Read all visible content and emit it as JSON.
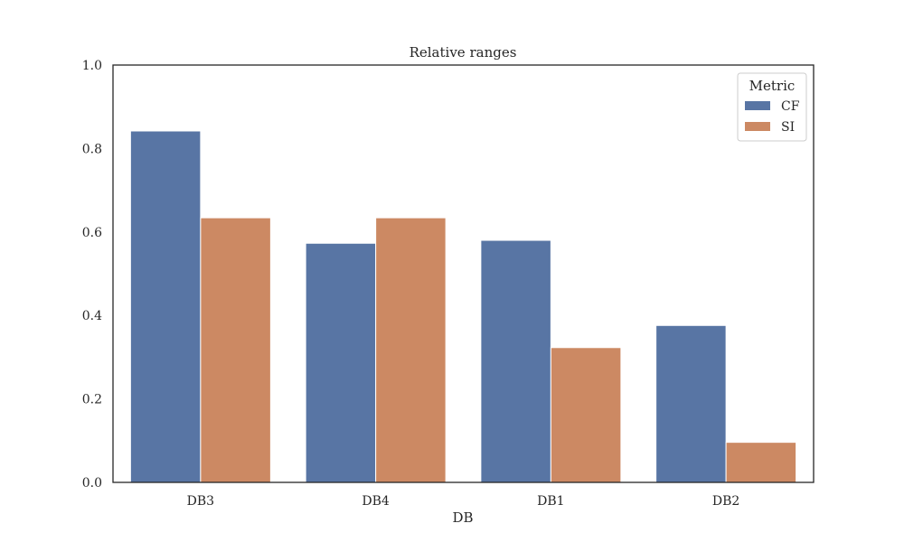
{
  "chart_data": {
    "type": "bar",
    "title": "Relative ranges",
    "xlabel": "DB",
    "ylabel": "",
    "categories": [
      "DB3",
      "DB4",
      "DB1",
      "DB2"
    ],
    "series": [
      {
        "name": "CF",
        "color": "#5875a4",
        "values": [
          0.842,
          0.573,
          0.58,
          0.376
        ]
      },
      {
        "name": "SI",
        "color": "#cc8963",
        "values": [
          0.634,
          0.634,
          0.323,
          0.096
        ]
      }
    ],
    "ylim": [
      0,
      1
    ],
    "yticks": [
      "0.0",
      "0.2",
      "0.4",
      "0.6",
      "0.8",
      "1.0"
    ],
    "grid": false,
    "legend": {
      "title": "Metric",
      "position": "top-right"
    }
  }
}
